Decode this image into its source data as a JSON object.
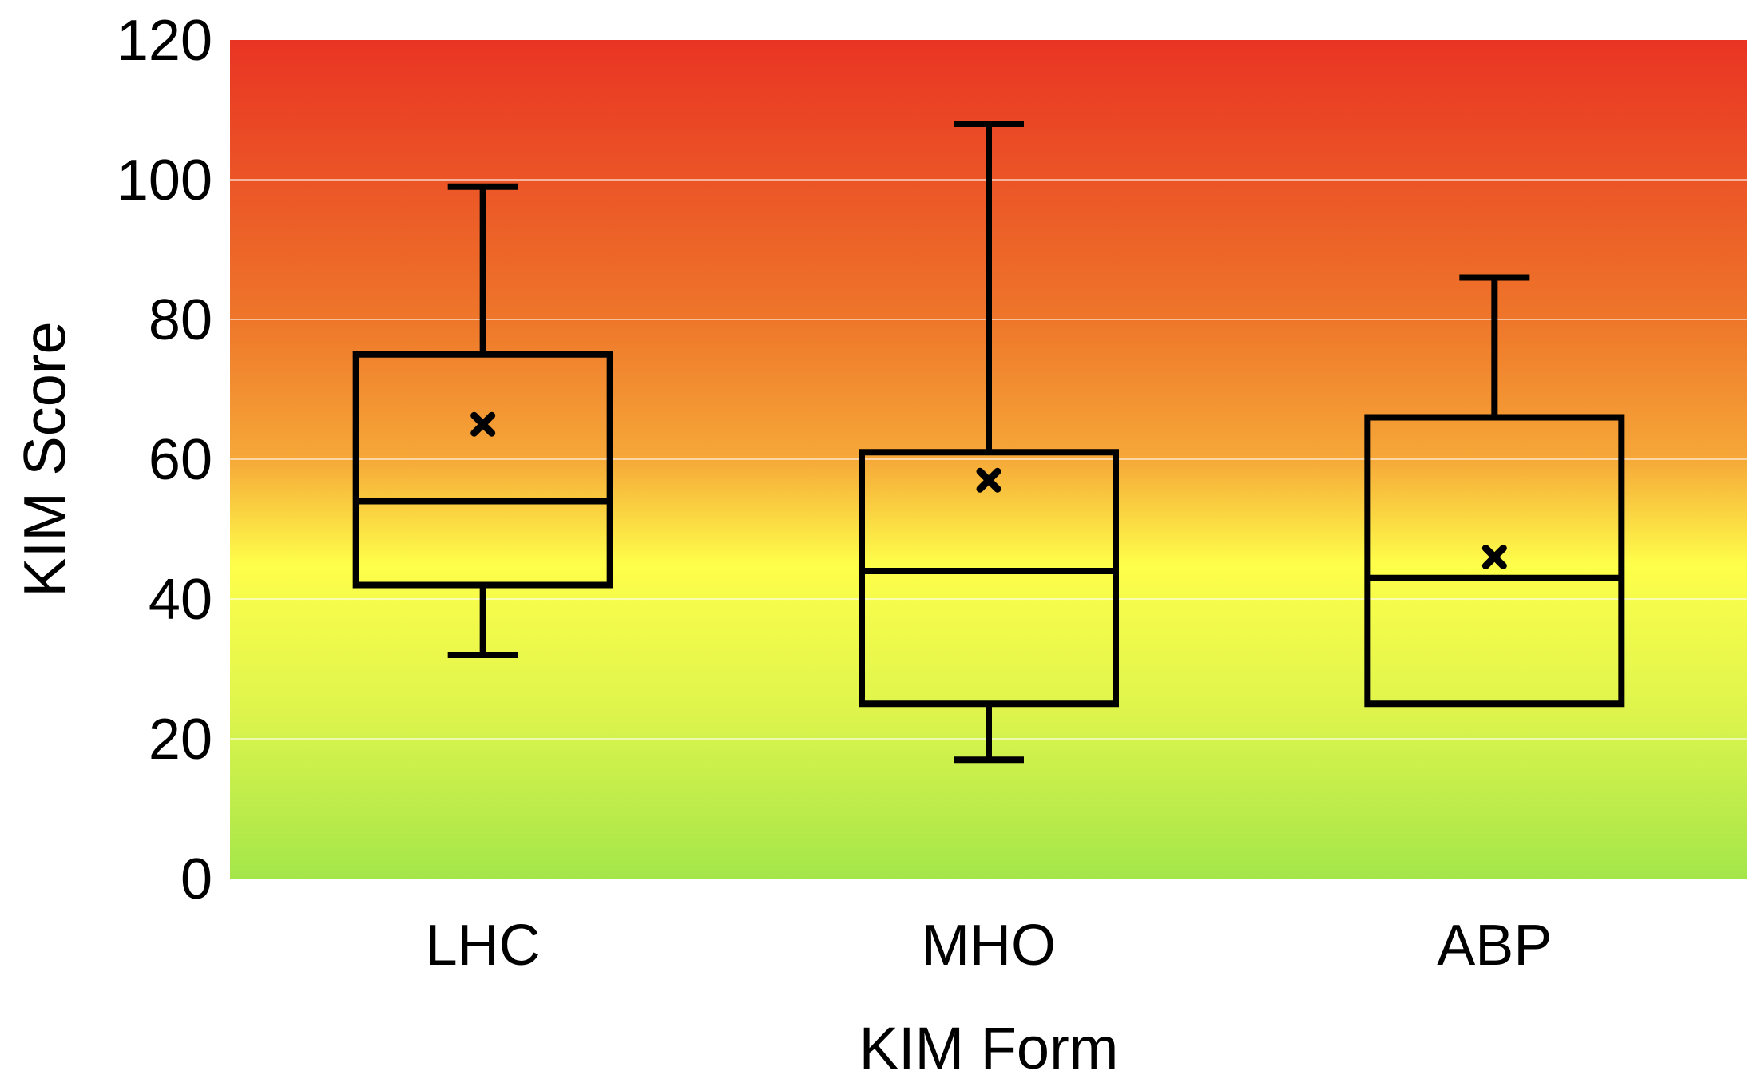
{
  "chart_data": {
    "type": "box",
    "title": "",
    "xlabel": "KIM Form",
    "ylabel": "KIM Score",
    "ylim": [
      0,
      120
    ],
    "yticks": [
      0,
      20,
      40,
      60,
      80,
      100,
      120
    ],
    "grid": true,
    "categories": [
      "LHC",
      "MHO",
      "ABP"
    ],
    "boxes": [
      {
        "category": "LHC",
        "min": 32,
        "q1": 42,
        "median": 54,
        "q3": 75,
        "max": 99,
        "mean": 65
      },
      {
        "category": "MHO",
        "min": 17,
        "q1": 25,
        "median": 44,
        "q3": 61,
        "max": 108,
        "mean": 57
      },
      {
        "category": "ABP",
        "min": 25,
        "q1": 25,
        "median": 43,
        "q3": 66,
        "max": 86,
        "mean": 46
      }
    ],
    "background_gradient": [
      {
        "value": 0,
        "color": "#a4e64a"
      },
      {
        "value": 25,
        "color": "#e0f54c"
      },
      {
        "value": 45,
        "color": "#fefe4a"
      },
      {
        "value": 60,
        "color": "#f6a838"
      },
      {
        "value": 80,
        "color": "#ee762a"
      },
      {
        "value": 120,
        "color": "#e93423"
      }
    ],
    "box_color": "#000000"
  }
}
